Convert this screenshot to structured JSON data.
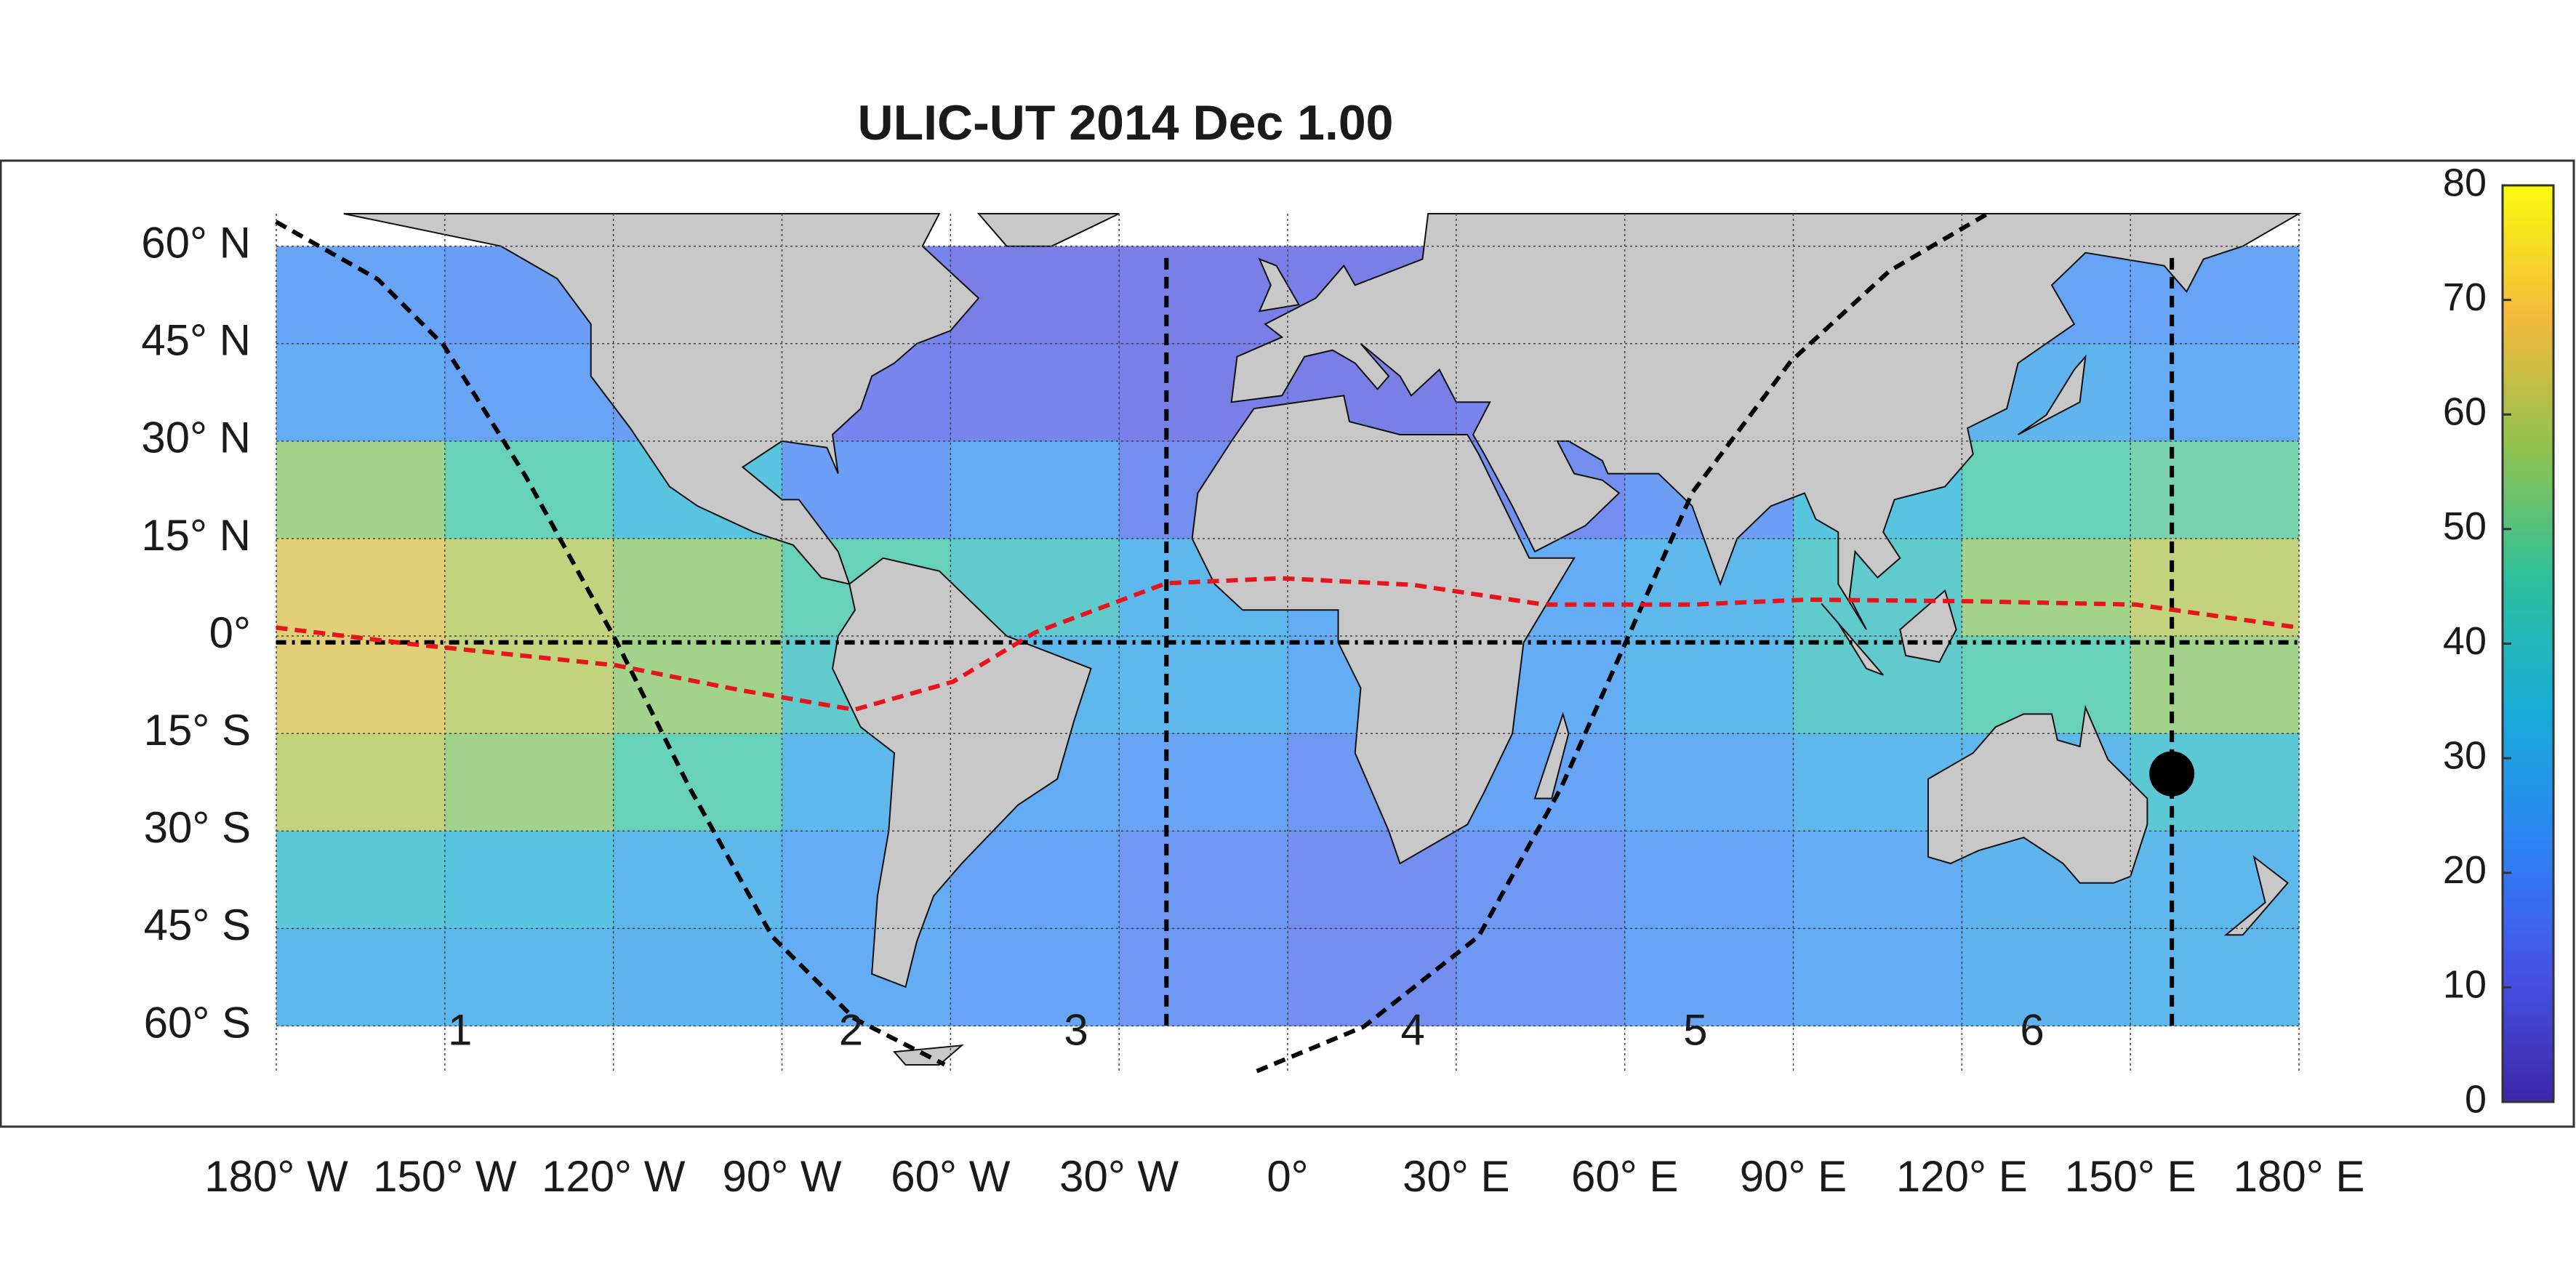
{
  "chart_data": {
    "type": "heatmap-map",
    "title": "ULIC-UT 2014 Dec  1.00",
    "xlim": [
      -180,
      180
    ],
    "ylim": [
      -67,
      65
    ],
    "xticks": [
      {
        "value": -180,
        "label": "180° W"
      },
      {
        "value": -150,
        "label": "150° W"
      },
      {
        "value": -120,
        "label": "120° W"
      },
      {
        "value": -90,
        "label": "90° W"
      },
      {
        "value": -60,
        "label": "60° W"
      },
      {
        "value": -30,
        "label": "30° W"
      },
      {
        "value": 0,
        "label": "0°"
      },
      {
        "value": 30,
        "label": "30° E"
      },
      {
        "value": 60,
        "label": "60° E"
      },
      {
        "value": 90,
        "label": "90° E"
      },
      {
        "value": 120,
        "label": "120° E"
      },
      {
        "value": 150,
        "label": "150° E"
      },
      {
        "value": 180,
        "label": "180° E"
      }
    ],
    "yticks": [
      {
        "value": 60,
        "label": "60° N"
      },
      {
        "value": 45,
        "label": "45° N"
      },
      {
        "value": 30,
        "label": "30° N"
      },
      {
        "value": 15,
        "label": "15° N"
      },
      {
        "value": 0,
        "label": "0°"
      },
      {
        "value": -15,
        "label": "15° S"
      },
      {
        "value": -30,
        "label": "30° S"
      },
      {
        "value": -45,
        "label": "45° S"
      },
      {
        "value": -60,
        "label": "60° S"
      }
    ],
    "grid": true,
    "clim": [
      0,
      80
    ],
    "cticks": [
      0,
      10,
      20,
      30,
      40,
      50,
      60,
      70,
      80
    ],
    "colormap": [
      "#3e26a8",
      "#4653e6",
      "#2c85f4",
      "#18acd8",
      "#2fc09c",
      "#91c250",
      "#f4ba3c",
      "#f9fb0e"
    ],
    "x": [
      -165,
      -135,
      -105,
      -75,
      -45,
      -15,
      15,
      45,
      75,
      105,
      135,
      165
    ],
    "y": [
      52.5,
      37.5,
      22.5,
      7.5,
      -7.5,
      -22.5,
      -37.5,
      -52.5
    ],
    "z": [
      [
        22,
        20,
        15,
        12,
        10,
        10,
        10,
        12,
        15,
        18,
        22,
        22
      ],
      [
        25,
        22,
        20,
        12,
        12,
        10,
        10,
        12,
        15,
        22,
        28,
        25
      ],
      [
        55,
        45,
        35,
        20,
        25,
        15,
        12,
        15,
        20,
        35,
        45,
        48
      ],
      [
        65,
        60,
        55,
        45,
        40,
        30,
        25,
        25,
        30,
        40,
        55,
        60
      ],
      [
        65,
        60,
        55,
        40,
        30,
        30,
        25,
        25,
        30,
        40,
        45,
        55
      ],
      [
        60,
        55,
        45,
        30,
        25,
        22,
        18,
        22,
        25,
        30,
        30,
        38
      ],
      [
        38,
        35,
        30,
        25,
        22,
        18,
        15,
        18,
        22,
        25,
        28,
        30
      ],
      [
        30,
        30,
        28,
        25,
        22,
        18,
        15,
        18,
        22,
        25,
        28,
        30
      ]
    ],
    "annotations": [
      "1",
      "2",
      "3",
      "4",
      "5",
      "6"
    ]
  }
}
